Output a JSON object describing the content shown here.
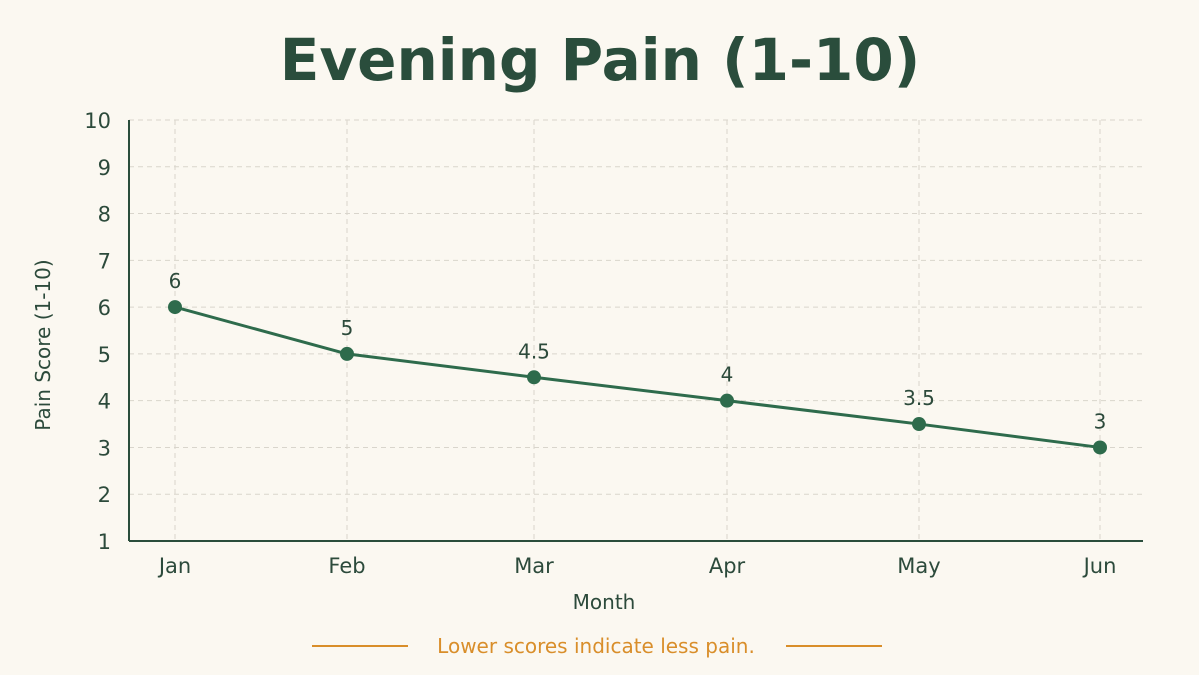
{
  "chart_data": {
    "type": "line",
    "title": "Evening Pain (1-10)",
    "xlabel": "Month",
    "ylabel": "Pain Score (1-10)",
    "categories": [
      "Jan",
      "Feb",
      "Mar",
      "Apr",
      "May",
      "Jun"
    ],
    "series": [
      {
        "values": [
          6,
          5,
          4.5,
          4,
          3.5,
          3
        ],
        "color": "#2e6b4c"
      }
    ],
    "data_labels": [
      "6",
      "5",
      "4.5",
      "4",
      "3.5",
      "3"
    ],
    "ylim": [
      1,
      10
    ],
    "yticks": [
      1,
      2,
      3,
      4,
      5,
      6,
      7,
      8,
      9,
      10
    ],
    "grid": true,
    "note": "Lower scores indicate less pain.",
    "colors": {
      "background": "#fbf8f1",
      "line": "#2e6b4c",
      "title": "#2a4d3c",
      "text": "#2c4a3b",
      "grid": "#d9d5cc",
      "note": "#d98e2a"
    }
  }
}
